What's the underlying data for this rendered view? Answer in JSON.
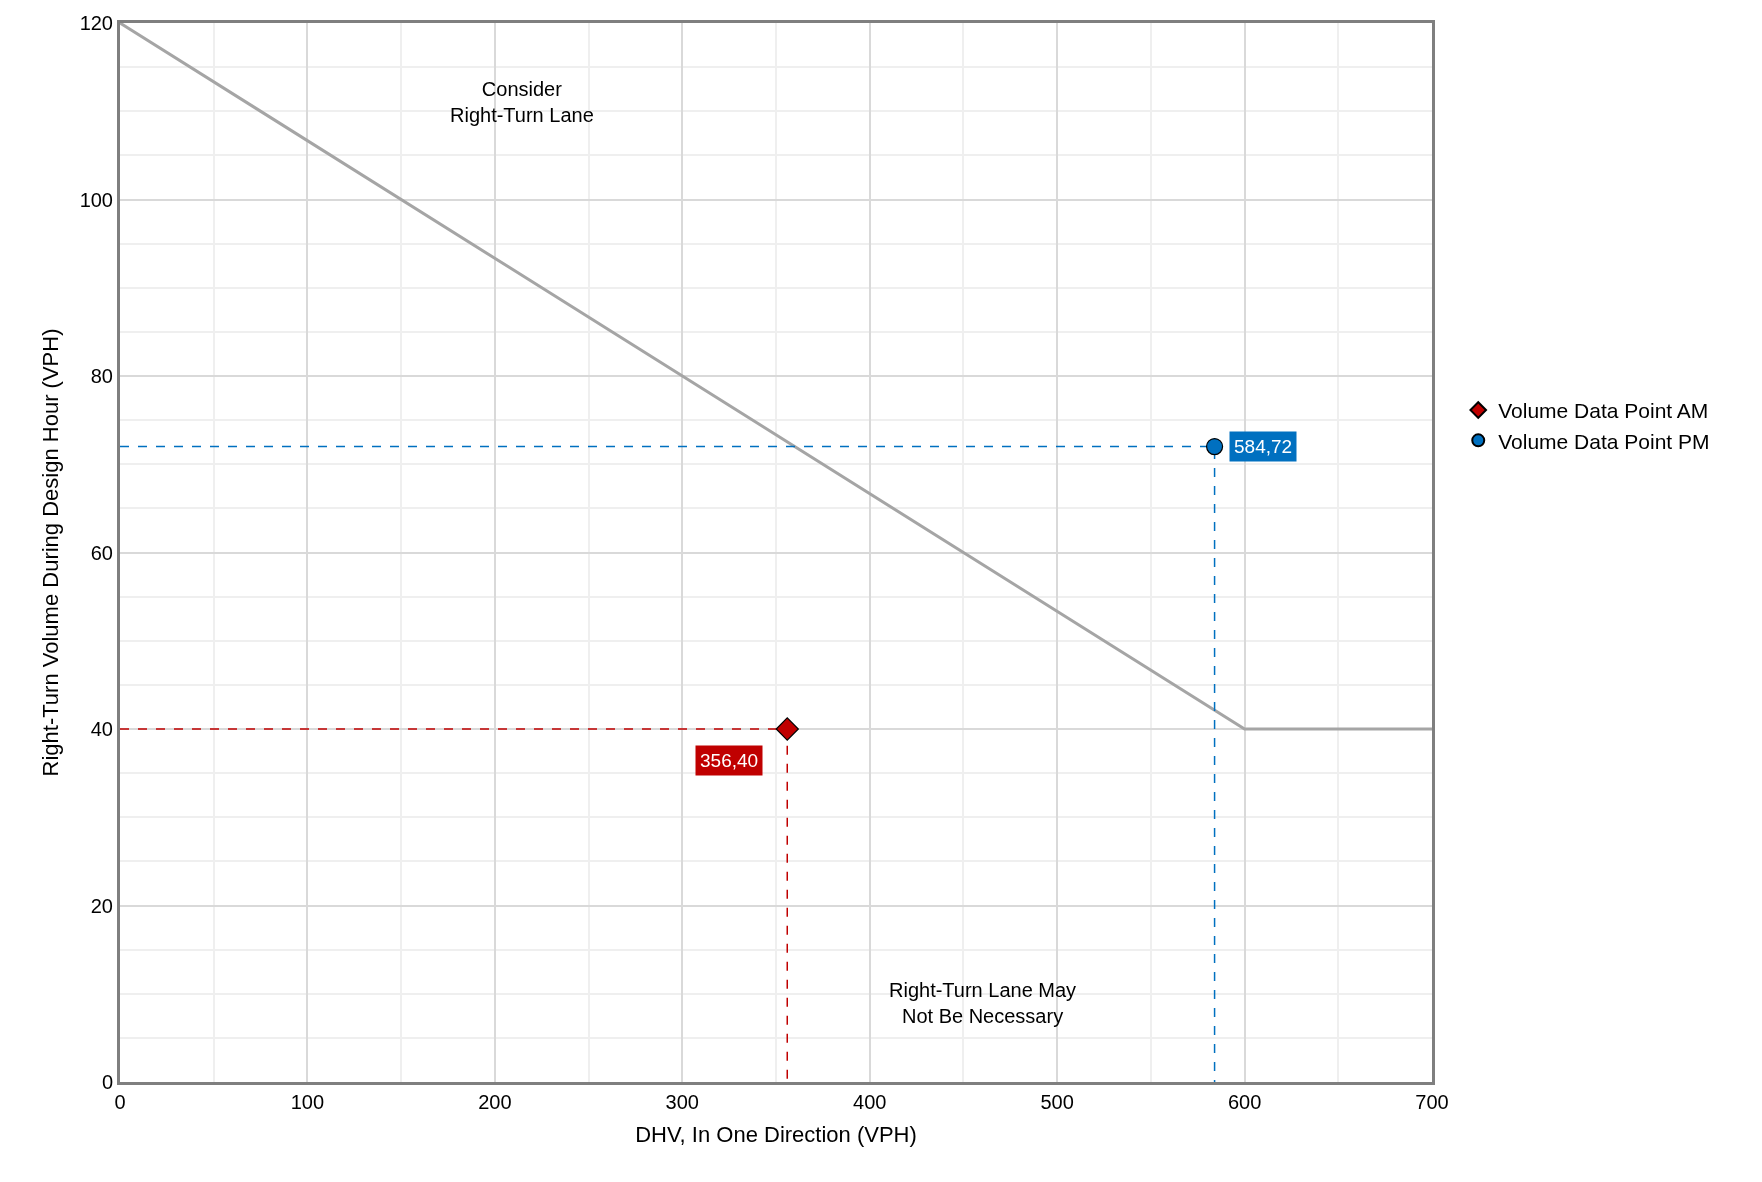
{
  "chart_data": {
    "type": "scatter",
    "xlabel": "DHV, In One Direction (VPH)",
    "ylabel": "Right-Turn Volume During Design Hour (VPH)",
    "xlim": [
      0,
      700
    ],
    "xticks": [
      0,
      100,
      200,
      300,
      400,
      500,
      600,
      700
    ],
    "ylim": [
      0,
      120
    ],
    "yticks": [
      0,
      20,
      40,
      60,
      80,
      100,
      120
    ],
    "grid": true,
    "legend": "right",
    "series": [
      {
        "type": "line",
        "color": "#a5a5a5",
        "line_style": "solid",
        "x": [
          0,
          600,
          700
        ],
        "values": [
          120,
          40,
          40
        ]
      },
      {
        "type": "line",
        "color": "#c00000",
        "line_style": "dashed",
        "x": [
          0,
          356,
          356
        ],
        "values": [
          40,
          40,
          0
        ]
      },
      {
        "type": "line",
        "color": "#0070c0",
        "line_style": "dashed",
        "x": [
          0,
          584,
          584
        ],
        "values": [
          72,
          72,
          0
        ]
      },
      {
        "name": "Volume Data Point AM",
        "color": "#c00000",
        "marker": "diamond",
        "x": [
          356
        ],
        "values": [
          40
        ]
      },
      {
        "name": "Volume Data Point PM",
        "color": "#0070c0",
        "marker": "circle",
        "x": [
          584
        ],
        "values": [
          72
        ]
      }
    ],
    "annotations": [
      "Consider\nRight-Turn Lane",
      "Right-Turn Lane May\nNot Be Necessary",
      {
        "text": "356,40",
        "x": 356,
        "y": 40
      },
      {
        "text": "584,72",
        "x": 584,
        "y": 72
      }
    ]
  }
}
